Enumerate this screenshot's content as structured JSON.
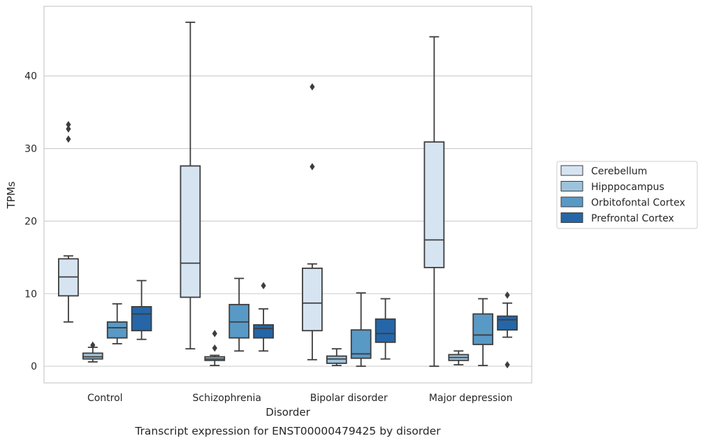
{
  "caption": "Transcript expression for ENST00000479425 by disorder",
  "chart_data": {
    "type": "box",
    "xlabel": "Disorder",
    "ylabel": "TPMs",
    "ylim": [
      -2.3,
      49.6
    ],
    "yticks": [
      0,
      10,
      20,
      30,
      40
    ],
    "grid": "horizontal",
    "legend_placement": "right",
    "categories": [
      "Control",
      "Schizophrenia",
      "Bipolar disorder",
      "Major depression"
    ],
    "series": [
      {
        "name": "Cerebellum",
        "color": "#d6e4f2",
        "boxes": [
          {
            "whislo": 6.1,
            "q1": 9.7,
            "med": 12.3,
            "q3": 14.8,
            "whishi": 15.2,
            "fliers": [
              31.3,
              32.7,
              33.3
            ]
          },
          {
            "whislo": 2.4,
            "q1": 9.5,
            "med": 14.2,
            "q3": 27.6,
            "whishi": 47.4,
            "fliers": []
          },
          {
            "whislo": 0.9,
            "q1": 4.9,
            "med": 8.7,
            "q3": 13.5,
            "whishi": 14.1,
            "fliers": [
              27.5,
              38.5
            ]
          },
          {
            "whislo": 0.0,
            "q1": 13.6,
            "med": 17.4,
            "q3": 30.9,
            "whishi": 45.4,
            "fliers": []
          }
        ]
      },
      {
        "name": "Hipppocampus",
        "color": "#9dc3dc",
        "boxes": [
          {
            "whislo": 0.6,
            "q1": 1.0,
            "med": 1.3,
            "q3": 1.8,
            "whishi": 2.6,
            "fliers": [
              2.9
            ]
          },
          {
            "whislo": 0.1,
            "q1": 0.8,
            "med": 1.0,
            "q3": 1.3,
            "whishi": 1.5,
            "fliers": [
              2.5,
              4.5
            ]
          },
          {
            "whislo": 0.1,
            "q1": 0.4,
            "med": 1.0,
            "q3": 1.4,
            "whishi": 2.4,
            "fliers": []
          },
          {
            "whislo": 0.2,
            "q1": 0.8,
            "med": 1.2,
            "q3": 1.6,
            "whishi": 2.1,
            "fliers": []
          }
        ]
      },
      {
        "name": "Orbitofontal Cortex",
        "color": "#5999c6",
        "boxes": [
          {
            "whislo": 3.1,
            "q1": 3.9,
            "med": 5.3,
            "q3": 6.1,
            "whishi": 8.6,
            "fliers": []
          },
          {
            "whislo": 2.1,
            "q1": 3.9,
            "med": 6.1,
            "q3": 8.5,
            "whishi": 12.1,
            "fliers": []
          },
          {
            "whislo": 0.0,
            "q1": 1.1,
            "med": 1.7,
            "q3": 5.0,
            "whishi": 10.1,
            "fliers": []
          },
          {
            "whislo": 0.1,
            "q1": 3.0,
            "med": 4.3,
            "q3": 7.2,
            "whishi": 9.3,
            "fliers": []
          }
        ]
      },
      {
        "name": "Prefrontal Cortex",
        "color": "#2466a8",
        "boxes": [
          {
            "whislo": 3.7,
            "q1": 4.9,
            "med": 7.2,
            "q3": 8.2,
            "whishi": 11.8,
            "fliers": []
          },
          {
            "whislo": 2.1,
            "q1": 3.9,
            "med": 5.2,
            "q3": 5.7,
            "whishi": 7.9,
            "fliers": [
              11.1
            ]
          },
          {
            "whislo": 1.0,
            "q1": 3.3,
            "med": 4.5,
            "q3": 6.5,
            "whishi": 9.3,
            "fliers": []
          },
          {
            "whislo": 4.0,
            "q1": 5.0,
            "med": 6.4,
            "q3": 6.9,
            "whishi": 8.7,
            "fliers": [
              0.2,
              9.8
            ]
          }
        ]
      }
    ]
  }
}
